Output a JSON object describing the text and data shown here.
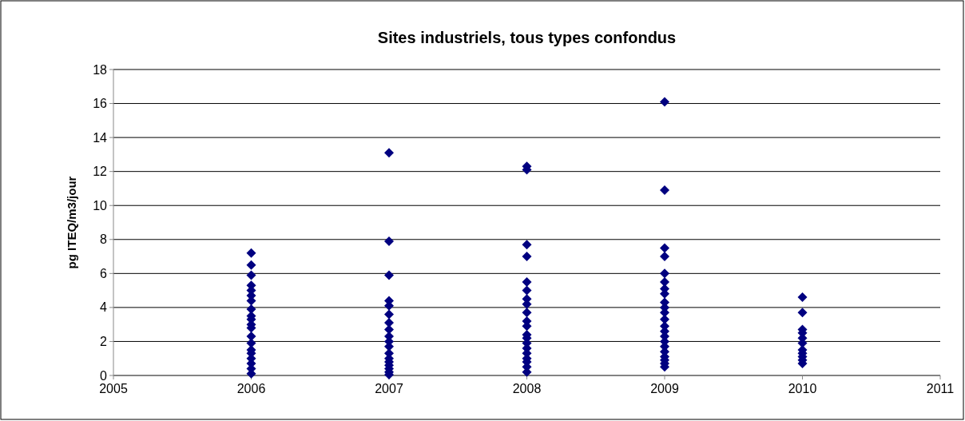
{
  "chart_data": {
    "type": "scatter",
    "title": "Sites industriels, tous types confondus",
    "ylabel": "pg ITEQ/m3/jour",
    "xlim": [
      2005,
      2011
    ],
    "xticks": [
      2005,
      2006,
      2007,
      2008,
      2009,
      2010,
      2011
    ],
    "ylim": [
      0,
      18
    ],
    "yticks": [
      0,
      2,
      4,
      6,
      8,
      10,
      12,
      14,
      16,
      18
    ],
    "grid": "y",
    "marker": "diamond",
    "series": [
      {
        "color": "#000080",
        "x": [
          2006,
          2006,
          2006,
          2006,
          2006,
          2006,
          2006,
          2006,
          2006,
          2006,
          2006,
          2006,
          2006,
          2006,
          2006,
          2006,
          2006,
          2006,
          2006,
          2006,
          2007,
          2007,
          2007,
          2007,
          2007,
          2007,
          2007,
          2007,
          2007,
          2007,
          2007,
          2007,
          2007,
          2007,
          2007,
          2007,
          2007,
          2007,
          2008,
          2008,
          2008,
          2008,
          2008,
          2008,
          2008,
          2008,
          2008,
          2008,
          2008,
          2008,
          2008,
          2008,
          2008,
          2008,
          2008,
          2008,
          2008,
          2008,
          2009,
          2009,
          2009,
          2009,
          2009,
          2009,
          2009,
          2009,
          2009,
          2009,
          2009,
          2009,
          2009,
          2009,
          2009,
          2009,
          2009,
          2009,
          2009,
          2009,
          2009,
          2009,
          2010,
          2010,
          2010,
          2010,
          2010,
          2010,
          2010,
          2010,
          2010,
          2010,
          2010
        ],
        "values": [
          7.2,
          6.5,
          5.9,
          5.3,
          5.0,
          4.7,
          4.4,
          3.9,
          3.5,
          3.3,
          3.0,
          2.8,
          2.3,
          1.9,
          1.5,
          1.3,
          1.0,
          0.7,
          0.4,
          0.1,
          13.1,
          7.9,
          5.9,
          4.4,
          4.1,
          3.6,
          3.1,
          2.7,
          2.3,
          2.0,
          1.7,
          1.3,
          1.0,
          0.8,
          0.6,
          0.4,
          0.2,
          0.05,
          12.3,
          12.1,
          7.7,
          7.0,
          5.5,
          5.0,
          4.5,
          4.2,
          3.7,
          3.2,
          2.9,
          2.4,
          2.2,
          1.9,
          1.6,
          1.3,
          1.0,
          0.8,
          0.5,
          0.2,
          16.1,
          10.9,
          7.5,
          7.0,
          6.0,
          5.5,
          5.1,
          4.8,
          4.3,
          4.0,
          3.7,
          3.3,
          2.9,
          2.6,
          2.3,
          2.0,
          1.7,
          1.4,
          1.1,
          0.9,
          0.7,
          0.5,
          4.6,
          3.7,
          2.7,
          2.5,
          2.2,
          1.9,
          1.5,
          1.3,
          1.1,
          0.9,
          0.7
        ]
      }
    ]
  }
}
